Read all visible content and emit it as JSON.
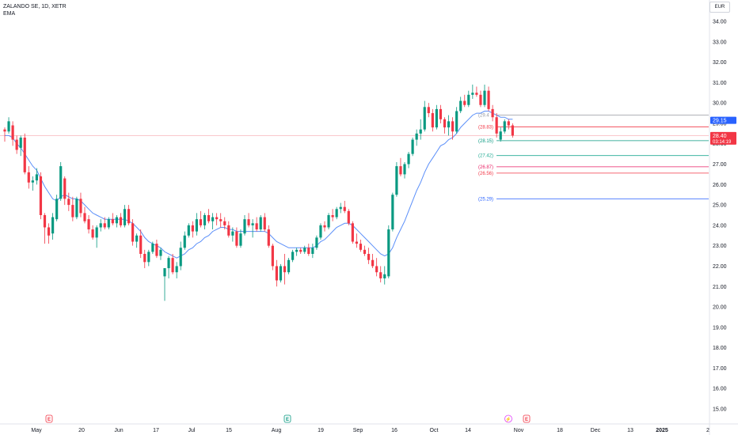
{
  "header": {
    "symbol_line": "ZALANDO SE, 1D, XETR",
    "indicator": "EMA",
    "currency_button": "EUR"
  },
  "colors": {
    "up": "#089981",
    "down": "#f23645",
    "ema": "#5b8ff9",
    "grid_text": "#131722",
    "price_line": "#f23645"
  },
  "chart_data": {
    "type": "candlestick",
    "title": "ZALANDO SE, 1D, XETR",
    "ylim": [
      15.0,
      34.5
    ],
    "y_ticks": [
      "34.00",
      "33.00",
      "32.00",
      "31.00",
      "30.00",
      "29.00",
      "28.00",
      "27.00",
      "26.00",
      "25.00",
      "24.00",
      "23.00",
      "22.00",
      "21.00",
      "20.00",
      "19.00",
      "18.00",
      "17.00",
      "16.00",
      "15.00"
    ],
    "x_ticks": [
      "May",
      "20",
      "Jun",
      "17",
      "Jul",
      "15",
      "Aug",
      "19",
      "Sep",
      "16",
      "Oct",
      "14",
      "Nov",
      "18",
      "Dec",
      "13",
      "2025",
      "2"
    ],
    "bold_x_ticks": [
      "2025"
    ],
    "ohlc": [
      [
        28.7,
        28.8,
        28.1,
        28.6
      ],
      [
        28.6,
        29.3,
        28.5,
        29.1
      ],
      [
        28.9,
        29.1,
        27.9,
        28.2
      ],
      [
        28.2,
        28.4,
        27.5,
        27.7
      ],
      [
        27.8,
        28.4,
        27.4,
        28.3
      ],
      [
        28.3,
        28.5,
        26.5,
        26.6
      ],
      [
        26.6,
        26.9,
        25.8,
        26.1
      ],
      [
        26.1,
        26.4,
        25.7,
        26.2
      ],
      [
        26.2,
        26.8,
        26.0,
        26.5
      ],
      [
        26.4,
        26.6,
        24.3,
        24.5
      ],
      [
        24.5,
        24.6,
        23.1,
        23.9
      ],
      [
        23.9,
        24.1,
        23.1,
        23.5
      ],
      [
        23.6,
        24.6,
        23.3,
        24.4
      ],
      [
        24.3,
        25.5,
        24.2,
        25.3
      ],
      [
        25.3,
        27.1,
        25.2,
        26.9
      ],
      [
        26.3,
        26.4,
        25.0,
        25.3
      ],
      [
        25.3,
        25.6,
        24.7,
        25.0
      ],
      [
        25.0,
        25.4,
        24.2,
        24.4
      ],
      [
        24.4,
        25.4,
        24.3,
        25.3
      ],
      [
        25.3,
        25.6,
        24.4,
        24.6
      ],
      [
        24.6,
        24.9,
        24.1,
        24.2
      ],
      [
        24.3,
        24.5,
        23.6,
        23.8
      ],
      [
        23.8,
        24.0,
        23.3,
        23.4
      ],
      [
        23.4,
        24.0,
        22.9,
        23.9
      ],
      [
        23.9,
        24.3,
        23.7,
        24.1
      ],
      [
        24.1,
        24.4,
        23.8,
        23.9
      ],
      [
        23.9,
        24.4,
        23.8,
        24.3
      ],
      [
        24.3,
        24.6,
        24.0,
        24.1
      ],
      [
        24.1,
        24.5,
        23.9,
        24.4
      ],
      [
        24.4,
        24.6,
        23.9,
        24.0
      ],
      [
        24.0,
        25.0,
        23.9,
        24.8
      ],
      [
        24.8,
        25.0,
        24.0,
        24.1
      ],
      [
        24.1,
        24.3,
        23.0,
        23.2
      ],
      [
        23.2,
        23.6,
        22.9,
        23.5
      ],
      [
        23.5,
        23.8,
        22.4,
        22.6
      ],
      [
        22.6,
        22.8,
        21.9,
        22.2
      ],
      [
        22.2,
        22.8,
        22.0,
        22.7
      ],
      [
        22.7,
        23.2,
        22.6,
        23.1
      ],
      [
        23.1,
        23.3,
        22.4,
        22.5
      ],
      [
        22.5,
        22.9,
        22.3,
        22.8
      ],
      [
        21.5,
        21.9,
        20.3,
        21.9
      ],
      [
        21.9,
        22.5,
        21.4,
        22.4
      ],
      [
        22.4,
        22.6,
        21.6,
        21.7
      ],
      [
        21.7,
        22.2,
        21.4,
        22.0
      ],
      [
        22.0,
        23.2,
        21.8,
        22.9
      ],
      [
        22.9,
        23.7,
        22.8,
        23.5
      ],
      [
        23.5,
        24.1,
        23.4,
        24.0
      ],
      [
        24.0,
        24.2,
        23.4,
        23.7
      ],
      [
        23.7,
        24.6,
        23.5,
        24.3
      ],
      [
        24.3,
        24.7,
        23.9,
        24.0
      ],
      [
        24.0,
        24.6,
        23.8,
        24.5
      ],
      [
        24.5,
        24.8,
        24.1,
        24.2
      ],
      [
        24.2,
        24.6,
        23.8,
        24.4
      ],
      [
        24.4,
        24.6,
        24.0,
        24.3
      ],
      [
        24.3,
        24.6,
        23.9,
        24.2
      ],
      [
        24.2,
        24.4,
        23.8,
        24.0
      ],
      [
        24.0,
        24.2,
        23.4,
        23.5
      ],
      [
        23.5,
        23.9,
        23.2,
        23.7
      ],
      [
        23.7,
        23.9,
        22.9,
        23.0
      ],
      [
        23.0,
        23.8,
        22.9,
        23.6
      ],
      [
        23.6,
        24.5,
        23.5,
        24.3
      ],
      [
        24.3,
        24.6,
        23.9,
        24.0
      ],
      [
        24.0,
        24.3,
        23.4,
        24.1
      ],
      [
        24.1,
        24.4,
        23.7,
        23.8
      ],
      [
        23.8,
        24.5,
        23.7,
        24.4
      ],
      [
        24.4,
        24.6,
        23.7,
        23.8
      ],
      [
        23.8,
        24.0,
        22.9,
        23.0
      ],
      [
        23.0,
        23.1,
        21.8,
        22.0
      ],
      [
        22.0,
        22.3,
        21.0,
        21.3
      ],
      [
        21.3,
        22.1,
        21.2,
        22.0
      ],
      [
        22.0,
        22.6,
        21.1,
        21.7
      ],
      [
        21.7,
        22.4,
        21.6,
        22.3
      ],
      [
        22.3,
        22.8,
        22.2,
        22.7
      ],
      [
        22.7,
        22.9,
        22.5,
        22.8
      ],
      [
        22.8,
        22.9,
        22.6,
        22.7
      ],
      [
        22.7,
        23.0,
        22.6,
        22.9
      ],
      [
        22.9,
        23.1,
        22.5,
        22.6
      ],
      [
        22.6,
        23.1,
        22.4,
        22.9
      ],
      [
        22.9,
        23.5,
        22.8,
        23.4
      ],
      [
        23.4,
        24.1,
        23.3,
        24.0
      ],
      [
        24.0,
        24.2,
        23.7,
        23.9
      ],
      [
        23.9,
        24.6,
        23.8,
        24.5
      ],
      [
        24.5,
        24.8,
        24.2,
        24.4
      ],
      [
        24.4,
        24.9,
        24.3,
        24.8
      ],
      [
        24.8,
        25.1,
        24.6,
        24.9
      ],
      [
        24.9,
        25.2,
        24.6,
        24.7
      ],
      [
        24.7,
        24.8,
        24.0,
        24.1
      ],
      [
        24.1,
        24.2,
        23.1,
        23.2
      ],
      [
        23.2,
        23.6,
        22.9,
        23.1
      ],
      [
        23.1,
        23.3,
        22.7,
        22.8
      ],
      [
        22.8,
        23.0,
        22.5,
        22.6
      ],
      [
        22.6,
        22.9,
        22.1,
        22.3
      ],
      [
        22.3,
        22.6,
        21.9,
        22.0
      ],
      [
        22.0,
        22.4,
        21.5,
        21.7
      ],
      [
        21.7,
        22.0,
        21.2,
        21.4
      ],
      [
        21.4,
        22.0,
        21.1,
        21.6
      ],
      [
        21.5,
        24.0,
        21.4,
        23.8
      ],
      [
        23.8,
        25.6,
        23.7,
        25.5
      ],
      [
        25.5,
        27.1,
        25.4,
        26.9
      ],
      [
        26.9,
        27.3,
        26.4,
        26.5
      ],
      [
        26.5,
        27.1,
        26.3,
        27.0
      ],
      [
        27.0,
        27.6,
        26.8,
        27.5
      ],
      [
        27.5,
        28.3,
        27.4,
        28.2
      ],
      [
        28.2,
        28.7,
        27.9,
        28.5
      ],
      [
        28.5,
        29.2,
        28.2,
        28.7
      ],
      [
        28.7,
        30.1,
        28.6,
        29.8
      ],
      [
        29.8,
        30.0,
        29.3,
        29.5
      ],
      [
        29.5,
        29.7,
        28.6,
        28.8
      ],
      [
        28.8,
        29.9,
        28.7,
        29.7
      ],
      [
        29.7,
        29.9,
        29.0,
        29.2
      ],
      [
        29.2,
        29.3,
        28.5,
        28.8
      ],
      [
        28.8,
        29.4,
        28.4,
        29.1
      ],
      [
        29.1,
        29.3,
        28.2,
        28.6
      ],
      [
        28.6,
        29.8,
        28.5,
        29.6
      ],
      [
        29.6,
        30.3,
        29.5,
        30.1
      ],
      [
        30.1,
        30.4,
        29.8,
        29.9
      ],
      [
        29.9,
        30.6,
        29.8,
        30.4
      ],
      [
        30.4,
        30.9,
        30.2,
        30.5
      ],
      [
        30.5,
        30.8,
        30.3,
        30.4
      ],
      [
        30.4,
        30.6,
        29.8,
        29.9
      ],
      [
        29.9,
        30.9,
        29.8,
        30.6
      ],
      [
        30.6,
        30.8,
        29.6,
        29.7
      ],
      [
        29.7,
        29.9,
        29.1,
        29.3
      ],
      [
        29.3,
        29.5,
        28.3,
        28.5
      ],
      [
        28.2,
        28.8,
        28.1,
        28.6
      ],
      [
        28.6,
        29.2,
        28.5,
        29.1
      ],
      [
        29.1,
        29.2,
        28.7,
        28.9
      ],
      [
        28.9,
        29.0,
        28.3,
        28.4
      ]
    ],
    "ema": [
      28.4,
      28.4,
      28.3,
      28.0,
      27.8,
      27.5,
      27.2,
      26.9,
      26.7,
      26.3,
      25.9,
      25.6,
      25.3,
      25.2,
      25.4,
      25.5,
      25.4,
      25.3,
      25.3,
      25.2,
      25.0,
      24.8,
      24.6,
      24.5,
      24.4,
      24.3,
      24.3,
      24.3,
      24.3,
      24.3,
      24.3,
      24.2,
      24.1,
      23.9,
      23.7,
      23.4,
      23.2,
      23.1,
      23.0,
      22.9,
      22.7,
      22.6,
      22.5,
      22.4,
      22.5,
      22.6,
      22.8,
      22.9,
      23.1,
      23.2,
      23.4,
      23.5,
      23.7,
      23.8,
      23.9,
      23.9,
      23.8,
      23.8,
      23.7,
      23.7,
      23.7,
      23.7,
      23.7,
      23.7,
      23.7,
      23.7,
      23.6,
      23.4,
      23.2,
      23.1,
      23.0,
      22.9,
      22.9,
      22.9,
      22.9,
      22.9,
      22.9,
      22.9,
      23.0,
      23.2,
      23.3,
      23.5,
      23.7,
      23.9,
      24.0,
      24.1,
      24.1,
      24.0,
      23.8,
      23.6,
      23.4,
      23.2,
      23.0,
      22.8,
      22.6,
      22.5,
      22.6,
      22.9,
      23.4,
      23.8,
      24.2,
      24.7,
      25.2,
      25.7,
      26.1,
      26.6,
      27.0,
      27.3,
      27.6,
      27.9,
      28.0,
      28.2,
      28.3,
      28.5,
      28.8,
      29.0,
      29.2,
      29.4,
      29.5,
      29.5,
      29.6,
      29.6,
      29.5,
      29.4,
      29.3,
      29.3,
      29.2,
      29.2
    ],
    "horizontal_levels": [
      {
        "label": "(29.4",
        "value": 29.4,
        "color": "#9598a1"
      },
      {
        "label": "(28.83)",
        "value": 28.83,
        "color": "#f23645"
      },
      {
        "label": "(28.15)",
        "value": 28.15,
        "color": "#089981"
      },
      {
        "label": "(27.42)",
        "value": 27.42,
        "color": "#22ab94"
      },
      {
        "label": "(26.87)",
        "value": 26.87,
        "color": "#e91e63"
      },
      {
        "label": "(26.56)",
        "value": 26.56,
        "color": "#f23645"
      },
      {
        "label": "(25.29)",
        "value": 25.29,
        "color": "#2962ff"
      }
    ],
    "last_price_line": 28.4,
    "price_labels": [
      {
        "text": "29.15",
        "value": 29.15,
        "color": "#2962ff"
      },
      {
        "text": "28.40",
        "sub": "03:14:19",
        "value": 28.4,
        "color": "#f23645"
      }
    ],
    "events": [
      {
        "glyph": "E",
        "type": "earnings"
      },
      {
        "glyph": "E",
        "type": "earnings"
      },
      {
        "glyph": "E",
        "type": "earnings"
      }
    ],
    "dividend_marker": "⚡"
  }
}
